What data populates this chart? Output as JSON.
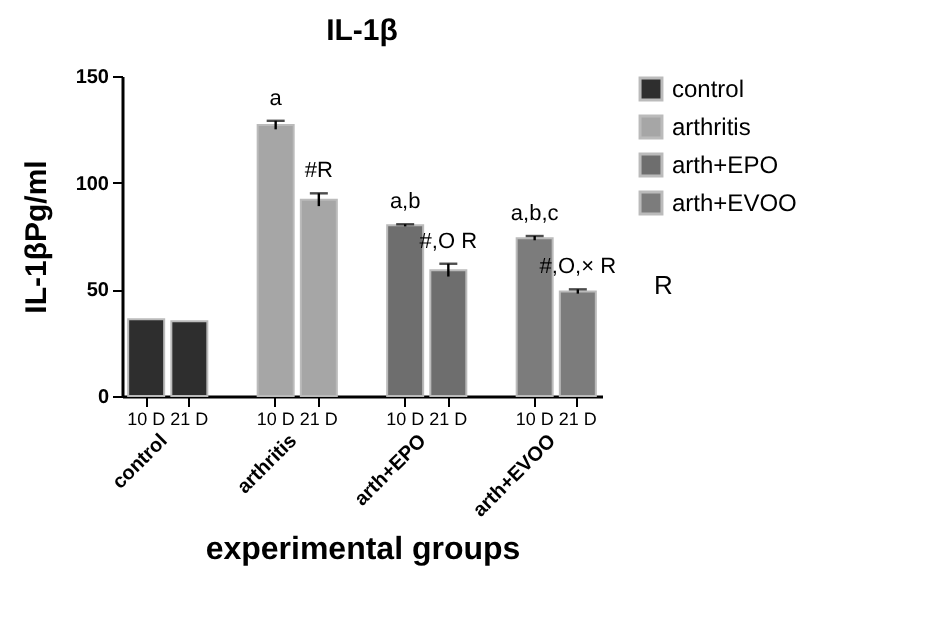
{
  "chart_data": {
    "type": "bar",
    "title": "IL-1β",
    "xlabel": "experimental groups",
    "ylabel": "IL-1βPg/ml",
    "categories": [
      "10 D",
      "21 D",
      "10 D",
      "21 D",
      "10 D",
      "21 D",
      "10 D",
      "21 D"
    ],
    "series": [
      {
        "name": "control",
        "color": "#2e2e2e",
        "values": [
          36,
          35,
          null,
          null,
          null,
          null,
          null,
          null
        ],
        "errors": [
          null,
          null,
          null,
          null,
          null,
          null,
          null,
          null
        ]
      },
      {
        "name": "arthritis",
        "color": "#a6a6a6",
        "values": [
          null,
          null,
          127,
          92,
          null,
          null,
          null,
          null
        ],
        "errors": [
          null,
          null,
          2,
          3,
          null,
          null,
          null,
          null
        ]
      },
      {
        "name": "arth+EPO",
        "color": "#6e6e6e",
        "values": [
          null,
          null,
          null,
          null,
          80,
          59,
          null,
          null
        ],
        "errors": [
          null,
          null,
          null,
          null,
          0.5,
          3,
          null,
          null
        ]
      },
      {
        "name": "arth+EVOO",
        "color": "#7c7c7c",
        "values": [
          null,
          null,
          null,
          null,
          null,
          null,
          74,
          49
        ],
        "errors": [
          null,
          null,
          null,
          null,
          null,
          null,
          1,
          1
        ]
      }
    ],
    "ylim": [
      0,
      150
    ],
    "yticks": [
      0,
      50,
      100,
      150
    ],
    "grid": false,
    "legend": "top right",
    "annotations": [
      "a",
      "#R",
      "a,b",
      "#,O R",
      "a,b,c",
      "#,O,× R",
      "R"
    ]
  }
}
